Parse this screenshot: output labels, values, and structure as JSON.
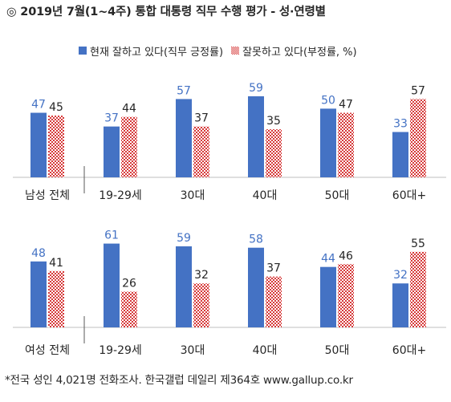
{
  "title": "◎  2019년 7월(1~4주) 통합 대통령 직무 수행 평가 - 성·연령별",
  "legend": {
    "approve": "현재 잘하고 있다(직무 긍정률)",
    "disapprove": "잘못하고 있다(부정률, %)"
  },
  "colors": {
    "approve": "#4472c4",
    "approve_label": "#4472c4",
    "disapprove_label": "#262626",
    "disapprove_check_a": "#d63a3a",
    "disapprove_check_b": "#ffffff",
    "axis": "#bfbfbf"
  },
  "footnote": "*전국 성인 4,021명 전화조사. 한국갤럽 데일리 제364호 www.gallup.co.kr",
  "chart_data": [
    {
      "type": "bar",
      "categories": [
        "남성 전체",
        "19-29세",
        "30대",
        "40대",
        "50대",
        "60대+"
      ],
      "series": [
        {
          "name": "현재 잘하고 있다(직무 긍정률)",
          "values": [
            47,
            37,
            57,
            59,
            50,
            33
          ]
        },
        {
          "name": "잘못하고 있다(부정률, %)",
          "values": [
            45,
            44,
            37,
            35,
            47,
            57
          ]
        }
      ],
      "ylim": [
        0,
        70
      ]
    },
    {
      "type": "bar",
      "categories": [
        "여성 전체",
        "19-29세",
        "30대",
        "40대",
        "50대",
        "60대+"
      ],
      "series": [
        {
          "name": "현재 잘하고 있다(직무 긍정률)",
          "values": [
            48,
            61,
            59,
            58,
            44,
            32
          ]
        },
        {
          "name": "잘못하고 있다(부정률, %)",
          "values": [
            41,
            26,
            32,
            37,
            46,
            55
          ]
        }
      ],
      "ylim": [
        0,
        70
      ]
    }
  ]
}
